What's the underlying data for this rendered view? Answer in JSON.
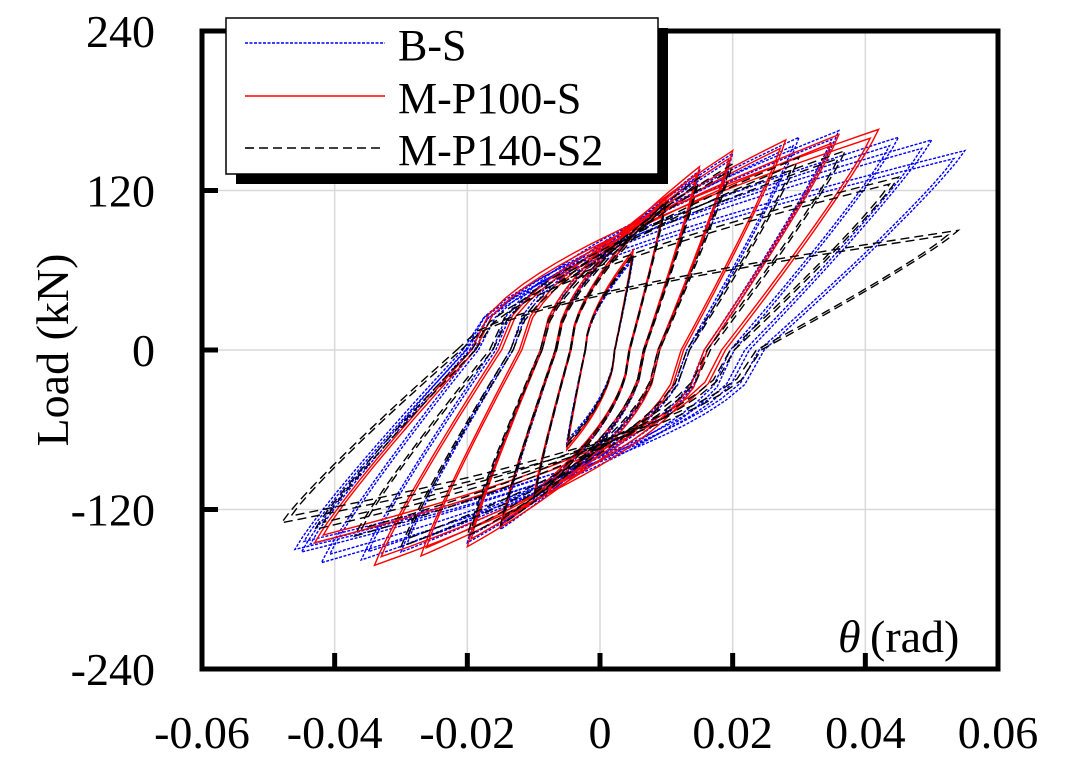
{
  "chart_data": {
    "type": "line",
    "title": "",
    "xlabel": "θ (rad)",
    "xlabel_symbol": "θ",
    "xlabel_unit": "(rad)",
    "ylabel": "Load (kN)",
    "xlim": [
      -0.06,
      0.06
    ],
    "ylim": [
      -240,
      240
    ],
    "xticks": [
      -0.06,
      -0.04,
      -0.02,
      0,
      0.02,
      0.04,
      0.06
    ],
    "xtick_labels": [
      "-0.06",
      "-0.04",
      "-0.02",
      "0",
      "0.02",
      "0.04",
      "0.06"
    ],
    "yticks": [
      -240,
      -120,
      0,
      120,
      240
    ],
    "ytick_labels": [
      "-240",
      "-120",
      "0",
      "120",
      "240"
    ],
    "grid": true,
    "legend_position": "top-left",
    "series": [
      {
        "name": "B-S",
        "color": "#0000ff",
        "style": "dotted",
        "cycles": [
          {
            "amp_pos": 0.005,
            "peak_pos": 70,
            "amp_neg": -0.005,
            "peak_neg": -70
          },
          {
            "amp_pos": 0.01,
            "peak_pos": 115,
            "amp_neg": -0.01,
            "peak_neg": -112
          },
          {
            "amp_pos": 0.015,
            "peak_pos": 135,
            "amp_neg": -0.015,
            "peak_neg": -135
          },
          {
            "amp_pos": 0.02,
            "peak_pos": 148,
            "amp_neg": -0.02,
            "peak_neg": -145
          },
          {
            "amp_pos": 0.03,
            "peak_pos": 160,
            "amp_neg": -0.03,
            "peak_neg": -152
          },
          {
            "amp_pos": 0.036,
            "peak_pos": 165,
            "amp_neg": -0.036,
            "peak_neg": -158
          },
          {
            "amp_pos": 0.045,
            "peak_pos": 160,
            "amp_neg": -0.042,
            "peak_neg": -160
          },
          {
            "amp_pos": 0.05,
            "peak_pos": 158,
            "amp_neg": -0.045,
            "peak_neg": -152
          },
          {
            "amp_pos": 0.055,
            "peak_pos": 150,
            "amp_neg": -0.046,
            "peak_neg": -150
          }
        ]
      },
      {
        "name": "M-P100-S",
        "color": "#ff0000",
        "style": "solid",
        "cycles": [
          {
            "amp_pos": 0.005,
            "peak_pos": 75,
            "amp_neg": -0.005,
            "peak_neg": -75
          },
          {
            "amp_pos": 0.01,
            "peak_pos": 115,
            "amp_neg": -0.01,
            "peak_neg": -110
          },
          {
            "amp_pos": 0.015,
            "peak_pos": 138,
            "amp_neg": -0.015,
            "peak_neg": -132
          },
          {
            "amp_pos": 0.02,
            "peak_pos": 150,
            "amp_neg": -0.02,
            "peak_neg": -148
          },
          {
            "amp_pos": 0.028,
            "peak_pos": 158,
            "amp_neg": -0.027,
            "peak_neg": -155
          },
          {
            "amp_pos": 0.036,
            "peak_pos": 162,
            "amp_neg": -0.034,
            "peak_neg": -162
          },
          {
            "amp_pos": 0.042,
            "peak_pos": 166,
            "amp_neg": -0.043,
            "peak_neg": -145
          }
        ]
      },
      {
        "name": "M-P140-S2",
        "color": "#000000",
        "style": "dashed",
        "cycles": [
          {
            "amp_pos": 0.005,
            "peak_pos": 72,
            "amp_neg": -0.005,
            "peak_neg": -72
          },
          {
            "amp_pos": 0.01,
            "peak_pos": 112,
            "amp_neg": -0.01,
            "peak_neg": -112
          },
          {
            "amp_pos": 0.015,
            "peak_pos": 130,
            "amp_neg": -0.015,
            "peak_neg": -132
          },
          {
            "amp_pos": 0.02,
            "peak_pos": 140,
            "amp_neg": -0.02,
            "peak_neg": -140
          },
          {
            "amp_pos": 0.03,
            "peak_pos": 145,
            "amp_neg": -0.03,
            "peak_neg": -148
          },
          {
            "amp_pos": 0.037,
            "peak_pos": 150,
            "amp_neg": -0.037,
            "peak_neg": -140
          },
          {
            "amp_pos": 0.045,
            "peak_pos": 130,
            "amp_neg": -0.043,
            "peak_neg": -135
          },
          {
            "amp_pos": 0.054,
            "peak_pos": 90,
            "amp_neg": -0.048,
            "peak_neg": -130
          }
        ]
      }
    ]
  }
}
